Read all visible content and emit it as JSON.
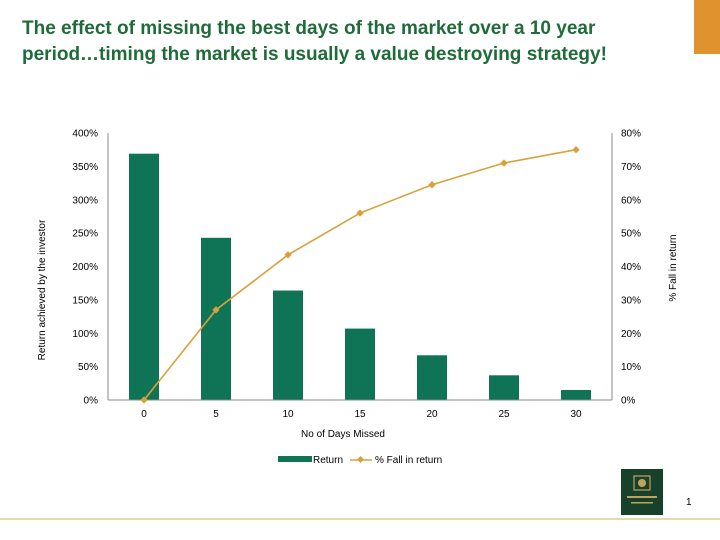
{
  "slide": {
    "title": "The effect of missing the best days of the market over a 10 year period…timing the market is usually a value destroying strategy!",
    "page_number": "1",
    "logo_text": "NEDGROUP INVESTMENTS",
    "accent_color": "#e0922f",
    "title_color": "#1f6b3a"
  },
  "chart_data": {
    "type": "bar",
    "categories": [
      "0",
      "5",
      "10",
      "15",
      "20",
      "25",
      "30"
    ],
    "series": [
      {
        "name": "Return",
        "type": "bar",
        "axis": "left",
        "color": "#0f7356",
        "values": [
          369,
          243,
          164,
          107,
          67,
          37,
          15
        ]
      },
      {
        "name": "% Fall in return",
        "type": "line",
        "axis": "right",
        "color": "#d9a13b",
        "values": [
          0,
          27,
          43.5,
          56,
          64.5,
          71,
          75
        ]
      }
    ],
    "xlabel": "No of Days Missed",
    "ylabel": "Return achieved by the investor",
    "y2label": "% Fall in return",
    "ylim": [
      0,
      400
    ],
    "y2lim": [
      0,
      80
    ],
    "yticks": [
      "0%",
      "50%",
      "100%",
      "150%",
      "200%",
      "250%",
      "300%",
      "350%",
      "400%"
    ],
    "y2ticks": [
      "0%",
      "10%",
      "20%",
      "30%",
      "40%",
      "50%",
      "60%",
      "70%",
      "80%"
    ],
    "grid": false,
    "legend": "bottom"
  }
}
